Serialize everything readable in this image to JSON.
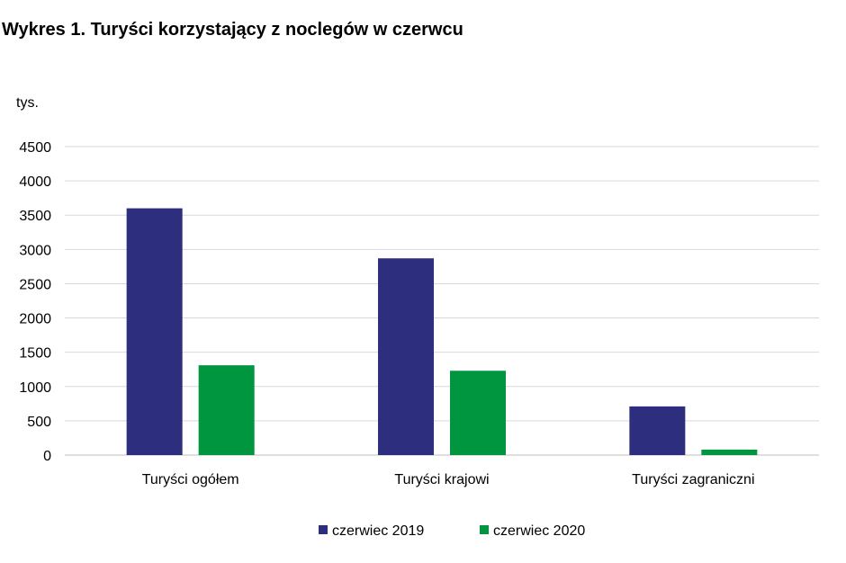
{
  "chart_data": {
    "type": "bar",
    "title": "Wykres 1. Turyści korzystający z noclegów w czerwcu",
    "unit_label": "tys.",
    "xlabel": "",
    "ylabel": "",
    "categories": [
      "Turyści ogółem",
      "Turyści krajowi",
      "Turyści zagraniczni"
    ],
    "series": [
      {
        "name": "czerwiec 2019",
        "color": "#2e2e7e",
        "values": [
          3600,
          2870,
          710
        ]
      },
      {
        "name": "czerwiec 2020",
        "color": "#00953f",
        "values": [
          1310,
          1230,
          80
        ]
      }
    ],
    "ylim": [
      0,
      4500
    ],
    "yticks": [
      0,
      500,
      1000,
      1500,
      2000,
      2500,
      3000,
      3500,
      4000,
      4500
    ],
    "grid": true,
    "legend_position": "bottom"
  }
}
